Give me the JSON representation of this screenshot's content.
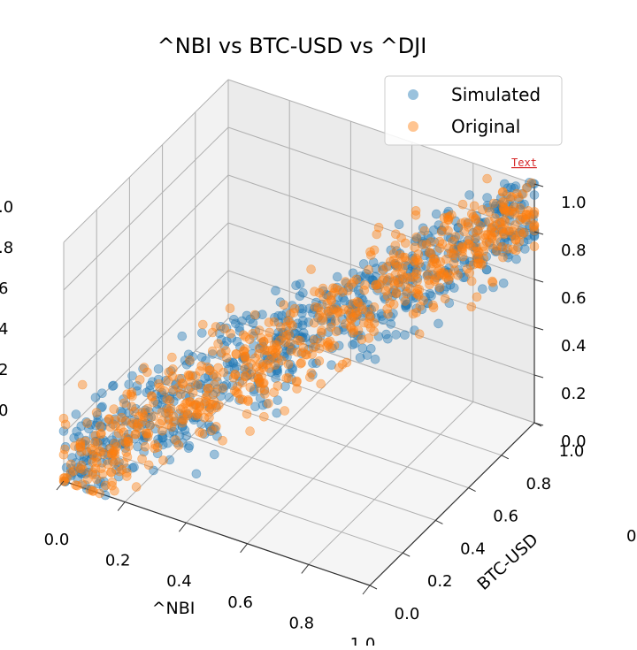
{
  "chart_data": {
    "type": "scatter",
    "projection": "3d",
    "title": "^NBI vs BTC-USD vs ^DJI",
    "xlabel": "^NBI",
    "ylabel": "BTC-USD",
    "zlabel": "",
    "xlim": [
      0,
      1
    ],
    "ylim": [
      0,
      1
    ],
    "zlim": [
      0,
      1
    ],
    "xticks": [
      "0.0",
      "0.2",
      "0.4",
      "0.6",
      "0.8",
      "1.0"
    ],
    "yticks": [
      "0.0",
      "0.2",
      "0.4",
      "0.6",
      "0.8",
      "1.0"
    ],
    "zticks": [
      "0.0",
      "0.2",
      "0.4",
      "0.6",
      "0.8",
      "1.0"
    ],
    "left_partial_zticks": [
      "0",
      "2",
      "4",
      "6",
      ".8",
      ".0"
    ],
    "right_partial_tick": "0",
    "annotation": "Text",
    "grid": true,
    "legend": "top-right",
    "series": [
      {
        "name": "Simulated",
        "color": "#1f77b4",
        "n_points": 700,
        "sample_points": [
          [
            0.05,
            0.1,
            0.12
          ],
          [
            0.3,
            0.4,
            0.45
          ],
          [
            0.55,
            0.6,
            0.5
          ],
          [
            0.8,
            0.85,
            0.9
          ],
          [
            0.95,
            0.9,
            0.95
          ]
        ]
      },
      {
        "name": "Original",
        "color": "#ff7f0e",
        "n_points": 700,
        "sample_points": [
          [
            0.08,
            0.05,
            0.1
          ],
          [
            0.35,
            0.45,
            0.4
          ],
          [
            0.6,
            0.55,
            0.6
          ],
          [
            0.85,
            0.8,
            0.85
          ],
          [
            0.97,
            0.95,
            0.98
          ]
        ]
      }
    ]
  }
}
